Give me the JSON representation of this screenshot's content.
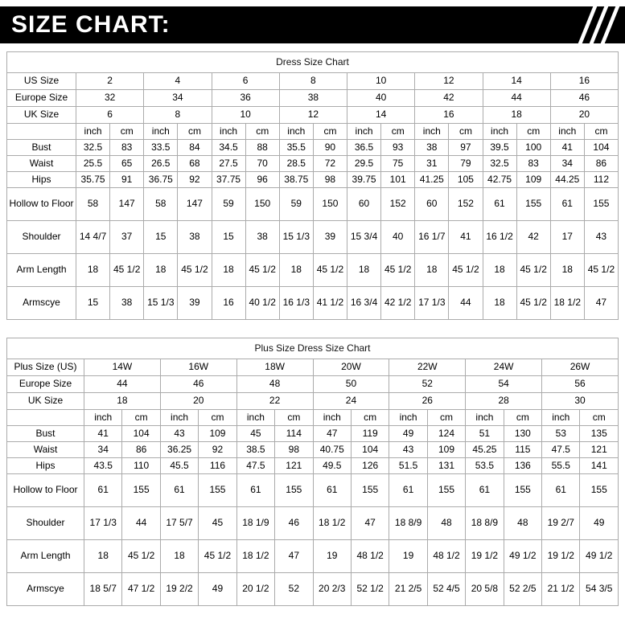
{
  "banner": {
    "title": "SIZE CHART:"
  },
  "table1": {
    "title": "Dress Size Chart",
    "size_rows": [
      {
        "label": "US Size",
        "values": [
          "2",
          "4",
          "6",
          "8",
          "10",
          "12",
          "14",
          "16"
        ]
      },
      {
        "label": "Europe Size",
        "values": [
          "32",
          "34",
          "36",
          "38",
          "40",
          "42",
          "44",
          "46"
        ]
      },
      {
        "label": "UK Size",
        "values": [
          "6",
          "8",
          "10",
          "12",
          "14",
          "16",
          "18",
          "20"
        ]
      }
    ],
    "units": [
      "inch",
      "cm",
      "inch",
      "cm",
      "inch",
      "cm",
      "inch",
      "cm",
      "inch",
      "cm",
      "inch",
      "cm",
      "inch",
      "cm",
      "inch",
      "cm"
    ],
    "measure_rows": [
      {
        "label": "Bust",
        "values": [
          "32.5",
          "83",
          "33.5",
          "84",
          "34.5",
          "88",
          "35.5",
          "90",
          "36.5",
          "93",
          "38",
          "97",
          "39.5",
          "100",
          "41",
          "104"
        ]
      },
      {
        "label": "Waist",
        "values": [
          "25.5",
          "65",
          "26.5",
          "68",
          "27.5",
          "70",
          "28.5",
          "72",
          "29.5",
          "75",
          "31",
          "79",
          "32.5",
          "83",
          "34",
          "86"
        ]
      },
      {
        "label": "Hips",
        "values": [
          "35.75",
          "91",
          "36.75",
          "92",
          "37.75",
          "96",
          "38.75",
          "98",
          "39.75",
          "101",
          "41.25",
          "105",
          "42.75",
          "109",
          "44.25",
          "112"
        ]
      },
      {
        "label": "Hollow to Floor",
        "values": [
          "58",
          "147",
          "58",
          "147",
          "59",
          "150",
          "59",
          "150",
          "60",
          "152",
          "60",
          "152",
          "61",
          "155",
          "61",
          "155"
        ]
      },
      {
        "label": "Shoulder",
        "values": [
          "14 4/7",
          "37",
          "15",
          "38",
          "15",
          "38",
          "15 1/3",
          "39",
          "15 3/4",
          "40",
          "16 1/7",
          "41",
          "16 1/2",
          "42",
          "17",
          "43"
        ]
      },
      {
        "label": "Arm Length",
        "values": [
          "18",
          "45 1/2",
          "18",
          "45 1/2",
          "18",
          "45 1/2",
          "18",
          "45 1/2",
          "18",
          "45 1/2",
          "18",
          "45 1/2",
          "18",
          "45 1/2",
          "18",
          "45 1/2"
        ]
      },
      {
        "label": "Armscye",
        "values": [
          "15",
          "38",
          "15 1/3",
          "39",
          "16",
          "40 1/2",
          "16 1/3",
          "41 1/2",
          "16 3/4",
          "42 1/2",
          "17 1/3",
          "44",
          "18",
          "45 1/2",
          "18 1/2",
          "47"
        ]
      }
    ]
  },
  "table2": {
    "title": "Plus Size Dress Size Chart",
    "size_rows": [
      {
        "label": "Plus Size (US)",
        "values": [
          "14W",
          "16W",
          "18W",
          "20W",
          "22W",
          "24W",
          "26W"
        ]
      },
      {
        "label": "Europe Size",
        "values": [
          "44",
          "46",
          "48",
          "50",
          "52",
          "54",
          "56"
        ]
      },
      {
        "label": "UK Size",
        "values": [
          "18",
          "20",
          "22",
          "24",
          "26",
          "28",
          "30"
        ]
      }
    ],
    "units": [
      "inch",
      "cm",
      "inch",
      "cm",
      "inch",
      "cm",
      "inch",
      "cm",
      "inch",
      "cm",
      "inch",
      "cm",
      "inch",
      "cm"
    ],
    "measure_rows": [
      {
        "label": "Bust",
        "values": [
          "41",
          "104",
          "43",
          "109",
          "45",
          "114",
          "47",
          "119",
          "49",
          "124",
          "51",
          "130",
          "53",
          "135"
        ]
      },
      {
        "label": "Waist",
        "values": [
          "34",
          "86",
          "36.25",
          "92",
          "38.5",
          "98",
          "40.75",
          "104",
          "43",
          "109",
          "45.25",
          "115",
          "47.5",
          "121"
        ]
      },
      {
        "label": "Hips",
        "values": [
          "43.5",
          "110",
          "45.5",
          "116",
          "47.5",
          "121",
          "49.5",
          "126",
          "51.5",
          "131",
          "53.5",
          "136",
          "55.5",
          "141"
        ]
      },
      {
        "label": "Hollow to Floor",
        "values": [
          "61",
          "155",
          "61",
          "155",
          "61",
          "155",
          "61",
          "155",
          "61",
          "155",
          "61",
          "155",
          "61",
          "155"
        ]
      },
      {
        "label": "Shoulder",
        "values": [
          "17 1/3",
          "44",
          "17 5/7",
          "45",
          "18 1/9",
          "46",
          "18 1/2",
          "47",
          "18 8/9",
          "48",
          "18 8/9",
          "48",
          "19 2/7",
          "49"
        ]
      },
      {
        "label": "Arm Length",
        "values": [
          "18",
          "45 1/2",
          "18",
          "45 1/2",
          "18 1/2",
          "47",
          "19",
          "48 1/2",
          "19",
          "48 1/2",
          "19 1/2",
          "49 1/2",
          "19 1/2",
          "49 1/2"
        ]
      },
      {
        "label": "Armscye",
        "values": [
          "18 5/7",
          "47 1/2",
          "19 2/2",
          "49",
          "20 1/2",
          "52",
          "20 2/3",
          "52 1/2",
          "21 2/5",
          "52 4/5",
          "20 5/8",
          "52 2/5",
          "21 1/2",
          "54 3/5"
        ]
      }
    ]
  }
}
